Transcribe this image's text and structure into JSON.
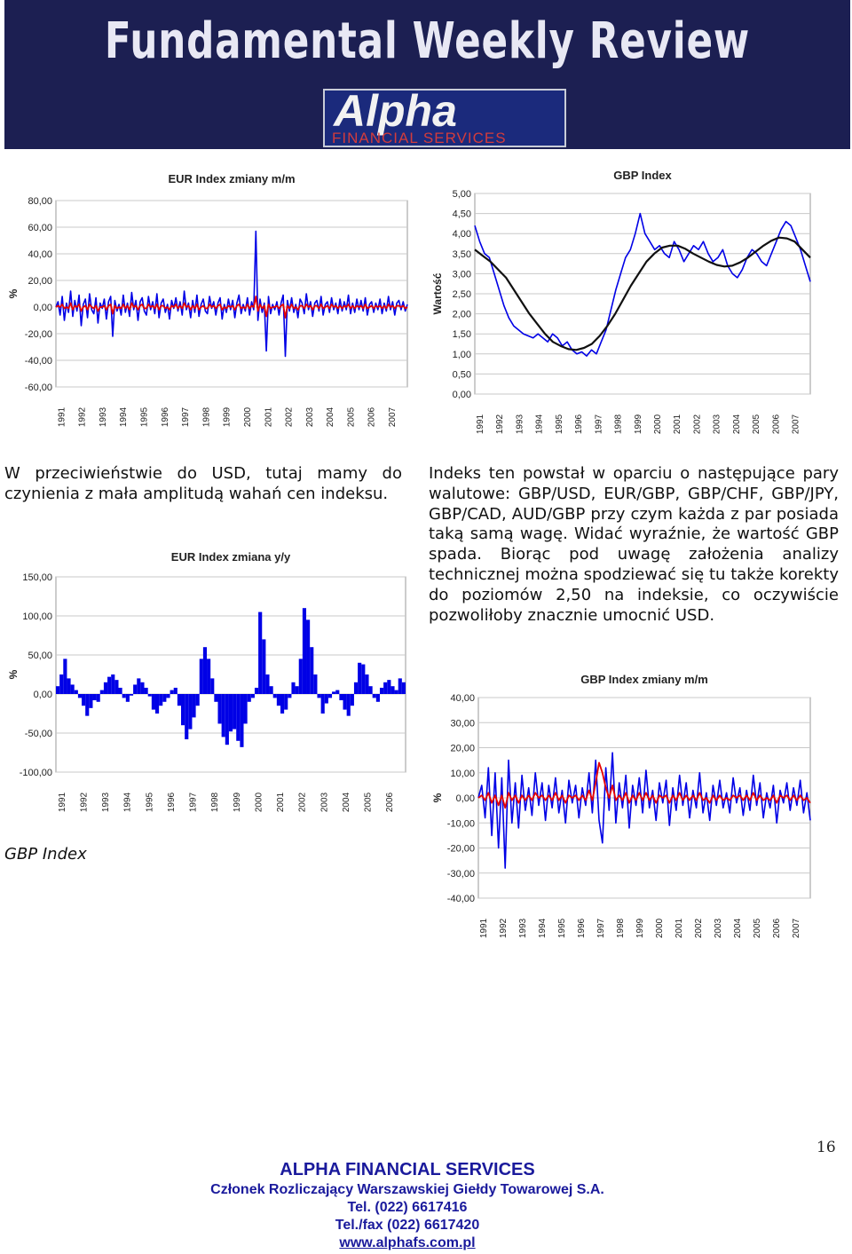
{
  "header": {
    "title": "Fundamental Weekly Review",
    "logo_word": "Alpha",
    "logo_subtitle": "FINANCIAL SERVICES"
  },
  "text": {
    "left_paragraph": "W przeciwieństwie do USD, tutaj mamy do czynienia z mała amplitudą wahań cen indeksu.",
    "right_paragraph": "Indeks ten powstał w oparciu o następujące pary walutowe: GBP/USD, EUR/GBP, GBP/CHF, GBP/JPY, GBP/CAD, AUD/GBP przy czym każda z par posiada taką samą wagę. Widać wyraźnie, że wartość GBP spada. Biorąc pod uwagę założenia analizy technicznej można spodziewać się tu także korekty do poziomów 2,50 na indeksie, co oczywiście pozwoliłoby znacznie umocnić USD.",
    "gbp_index_label": "GBP Index"
  },
  "footer": {
    "company": "ALPHA FINANCIAL SERVICES",
    "member": "Członek Rozliczający Warszawskiej Giełdy Towarowej S.A.",
    "tel": "Tel. (022) 6617416",
    "fax": "Tel./fax (022) 6617420",
    "website": "www.alphafs.com.pl",
    "page_number": "16"
  },
  "colors": {
    "banner": "#1c1f52",
    "series_blue": "#0000e6",
    "series_red": "#e60000",
    "trend_black": "#111111",
    "footer_text": "#1a1a9c"
  },
  "chart_data": [
    {
      "id": "eur_mm",
      "type": "line",
      "title": "EUR Index zmiany m/m",
      "ylabel": "%",
      "ylim": [
        -60,
        80
      ],
      "yticks": [
        "80,00",
        "60,00",
        "40,00",
        "20,00",
        "0,00",
        "-20,00",
        "-40,00",
        "-60,00"
      ],
      "ytick_values": [
        80,
        60,
        40,
        20,
        0,
        -20,
        -40,
        -60
      ],
      "xticks": [
        "1991",
        "1992",
        "1993",
        "1994",
        "1995",
        "1996",
        "1997",
        "1998",
        "1999",
        "2000",
        "2001",
        "2002",
        "2003",
        "2004",
        "2005",
        "2006",
        "2007"
      ],
      "series": [
        {
          "color": "#0000e6",
          "values": [
            0,
            4,
            -6,
            8,
            -10,
            3,
            -4,
            12,
            -7,
            5,
            -3,
            9,
            -14,
            2,
            6,
            -8,
            10,
            -2,
            -5,
            7,
            -12,
            3,
            -1,
            6,
            -9,
            4,
            8,
            -22,
            5,
            -3,
            2,
            -6,
            9,
            -4,
            3,
            -7,
            11,
            -2,
            5,
            -10,
            4,
            7,
            -3,
            -6,
            8,
            -2,
            4,
            -5,
            10,
            -8,
            3,
            6,
            -4,
            2,
            -9,
            5,
            -1,
            7,
            -3,
            4,
            -6,
            12,
            -2,
            3,
            -8,
            5,
            -4,
            9,
            -7,
            2,
            6,
            -3,
            -5,
            8,
            -1,
            4,
            -6,
            3,
            7,
            -9,
            2,
            -4,
            6,
            -2,
            5,
            -8,
            3,
            9,
            -5,
            2,
            -3,
            7,
            -6,
            4,
            -2,
            57,
            -10,
            6,
            -4,
            3,
            -33,
            8,
            -5,
            2,
            -2,
            4,
            -6,
            3,
            9,
            -37,
            5,
            -3,
            7,
            -4,
            2,
            -8,
            6,
            3,
            -5,
            10,
            -2,
            4,
            -7,
            3,
            5,
            -3,
            8,
            -6,
            2,
            4,
            -4,
            7,
            -2,
            3,
            -5,
            6,
            -3,
            4,
            -2,
            9,
            -5,
            3,
            -4,
            6,
            -2,
            5,
            -3,
            7,
            -6,
            2,
            4,
            -4,
            3,
            -2,
            6,
            -5,
            3,
            -3,
            8,
            -2,
            4,
            -6,
            3,
            5,
            -2,
            4,
            -3,
            2
          ]
        },
        {
          "color": "#e60000",
          "values": [
            0,
            1,
            0,
            2,
            -1,
            0,
            -1,
            3,
            -2,
            1,
            0,
            2,
            -3,
            0,
            1,
            -2,
            2,
            0,
            -1,
            1,
            -3,
            0,
            0,
            1,
            -2,
            1,
            2,
            -5,
            1,
            -1,
            0,
            -1,
            2,
            -1,
            1,
            -2,
            3,
            0,
            1,
            -2,
            1,
            2,
            -1,
            -1,
            2,
            0,
            1,
            -1,
            2,
            -2,
            1,
            1,
            -1,
            0,
            -2,
            1,
            0,
            2,
            -1,
            1,
            -1,
            3,
            0,
            1,
            -2,
            1,
            -1,
            2,
            -2,
            0,
            1,
            -1,
            -1,
            2,
            0,
            1,
            -1,
            1,
            2,
            -2,
            0,
            -1,
            1,
            0,
            1,
            -2,
            1,
            2,
            -1,
            0,
            -1,
            2,
            -1,
            1,
            0,
            8,
            -3,
            2,
            -1,
            1,
            -7,
            2,
            -1,
            0,
            0,
            1,
            -1,
            1,
            2,
            -8,
            1,
            -1,
            2,
            -1,
            0,
            -2,
            1,
            1,
            -1,
            2,
            0,
            1,
            -2,
            1,
            1,
            -1,
            2,
            -1,
            0,
            1,
            -1,
            2,
            0,
            1,
            -1,
            1,
            -1,
            1,
            0,
            2,
            -1,
            1,
            -1,
            1,
            0,
            1,
            -1,
            2,
            -1,
            0,
            1,
            -1,
            1,
            0,
            1,
            -1,
            1,
            -1,
            2,
            0,
            1,
            -1,
            1,
            1,
            0,
            1,
            -1,
            0
          ]
        }
      ]
    },
    {
      "id": "gbp_index",
      "type": "line",
      "title": "GBP Index",
      "ylabel": "Wartość",
      "ylim": [
        0,
        5
      ],
      "yticks": [
        "5,00",
        "4,50",
        "4,00",
        "3,50",
        "3,00",
        "2,50",
        "2,00",
        "1,50",
        "1,00",
        "0,50",
        "0,00"
      ],
      "ytick_values": [
        5,
        4.5,
        4,
        3.5,
        3,
        2.5,
        2,
        1.5,
        1,
        0.5,
        0
      ],
      "xticks": [
        "1991",
        "1992",
        "1993",
        "1994",
        "1995",
        "1996",
        "1997",
        "1998",
        "1999",
        "2000",
        "2001",
        "2002",
        "2003",
        "2004",
        "2005",
        "2006",
        "2007"
      ],
      "series": [
        {
          "color": "#0000e6",
          "values": [
            4.2,
            3.8,
            3.5,
            3.4,
            3.0,
            2.6,
            2.2,
            1.9,
            1.7,
            1.6,
            1.5,
            1.45,
            1.4,
            1.5,
            1.4,
            1.3,
            1.5,
            1.4,
            1.2,
            1.3,
            1.1,
            1.0,
            1.05,
            0.95,
            1.1,
            1.0,
            1.3,
            1.6,
            2.1,
            2.6,
            3.0,
            3.4,
            3.6,
            4.0,
            4.5,
            4.0,
            3.8,
            3.6,
            3.7,
            3.5,
            3.4,
            3.8,
            3.6,
            3.3,
            3.5,
            3.7,
            3.6,
            3.8,
            3.5,
            3.3,
            3.4,
            3.6,
            3.2,
            3.0,
            2.9,
            3.1,
            3.4,
            3.6,
            3.5,
            3.3,
            3.2,
            3.5,
            3.8,
            4.1,
            4.3,
            4.2,
            3.9,
            3.6,
            3.2,
            2.8
          ]
        },
        {
          "color": "#111111",
          "values": [
            3.6,
            3.45,
            3.3,
            3.1,
            2.9,
            2.6,
            2.3,
            2.0,
            1.75,
            1.5,
            1.3,
            1.2,
            1.12,
            1.1,
            1.15,
            1.25,
            1.45,
            1.7,
            2.0,
            2.35,
            2.7,
            3.0,
            3.3,
            3.5,
            3.65,
            3.7,
            3.7,
            3.62,
            3.5,
            3.4,
            3.3,
            3.22,
            3.18,
            3.2,
            3.28,
            3.4,
            3.55,
            3.7,
            3.82,
            3.9,
            3.88,
            3.8,
            3.6,
            3.4
          ]
        }
      ]
    },
    {
      "id": "eur_yy",
      "type": "bar",
      "title": "EUR Index zmiana y/y",
      "ylabel": "%",
      "ylim": [
        -100,
        150
      ],
      "yticks": [
        "150,00",
        "100,00",
        "50,00",
        "0,00",
        "-50,00",
        "-100,00"
      ],
      "ytick_values": [
        150,
        100,
        50,
        0,
        -50,
        -100
      ],
      "xticks": [
        "1991",
        "1992",
        "1993",
        "1994",
        "1995",
        "1996",
        "1997",
        "1998",
        "1999",
        "2000",
        "2001",
        "2002",
        "2003",
        "2004",
        "2005",
        "2006"
      ],
      "series": [
        {
          "color": "#0000e6",
          "values": [
            10,
            25,
            45,
            20,
            12,
            5,
            -5,
            -15,
            -28,
            -18,
            -8,
            -10,
            5,
            15,
            22,
            25,
            18,
            8,
            -5,
            -10,
            -2,
            12,
            20,
            15,
            8,
            -3,
            -20,
            -25,
            -15,
            -10,
            -5,
            5,
            8,
            -15,
            -40,
            -58,
            -45,
            -30,
            -15,
            45,
            60,
            45,
            20,
            -10,
            -38,
            -55,
            -65,
            -48,
            -45,
            -60,
            -68,
            -38,
            -10,
            -5,
            8,
            105,
            70,
            25,
            10,
            -5,
            -15,
            -25,
            -20,
            -5,
            15,
            10,
            45,
            110,
            95,
            60,
            25,
            -5,
            -25,
            -12,
            -5,
            3,
            5,
            -8,
            -20,
            -28,
            -15,
            15,
            40,
            38,
            25,
            10,
            -5,
            -10,
            8,
            15,
            18,
            10,
            5,
            20,
            15
          ]
        }
      ]
    },
    {
      "id": "gbp_mm",
      "type": "line",
      "title": "GBP Index zmiany m/m",
      "ylabel": "%",
      "ylim": [
        -40,
        40
      ],
      "yticks": [
        "40,00",
        "30,00",
        "20,00",
        "10,00",
        "0,00",
        "-10,00",
        "-20,00",
        "-30,00",
        "-40,00"
      ],
      "ytick_values": [
        40,
        30,
        20,
        10,
        0,
        -10,
        -20,
        -30,
        -40
      ],
      "xticks": [
        "1991",
        "1992",
        "1993",
        "1994",
        "1995",
        "1996",
        "1997",
        "1998",
        "1999",
        "2000",
        "2001",
        "2002",
        "2003",
        "2004",
        "2005",
        "2006",
        "2007"
      ],
      "series": [
        {
          "color": "#0000e6",
          "values": [
            0,
            5,
            -8,
            12,
            -15,
            10,
            -20,
            8,
            -28,
            15,
            -10,
            6,
            -12,
            9,
            -5,
            4,
            -7,
            10,
            -3,
            6,
            -9,
            5,
            -4,
            8,
            -6,
            3,
            -10,
            7,
            -2,
            5,
            -8,
            4,
            -3,
            10,
            -6,
            15,
            -9,
            -18,
            12,
            -5,
            18,
            -10,
            6,
            -4,
            9,
            -12,
            5,
            -3,
            8,
            -6,
            11,
            -4,
            3,
            -9,
            6,
            -2,
            7,
            -11,
            4,
            -5,
            9,
            -3,
            6,
            -8,
            3,
            -4,
            10,
            -6,
            2,
            -9,
            5,
            -3,
            7,
            -4,
            2,
            -6,
            8,
            -2,
            4,
            -7,
            3,
            -5,
            9,
            -3,
            6,
            -8,
            2,
            -4,
            5,
            -10,
            3,
            -2,
            6,
            -5,
            4,
            -3,
            7,
            -6,
            2,
            -9
          ]
        },
        {
          "color": "#e60000",
          "values": [
            0,
            1,
            -1,
            2,
            -2,
            1,
            -3,
            1,
            -4,
            2,
            -1,
            1,
            -2,
            1,
            -1,
            1,
            -1,
            2,
            0,
            1,
            -1,
            1,
            -1,
            2,
            -1,
            1,
            -2,
            1,
            0,
            1,
            -1,
            1,
            -1,
            3,
            -1,
            6,
            14,
            10,
            4,
            0,
            5,
            -1,
            1,
            -1,
            2,
            -2,
            1,
            -1,
            2,
            -1,
            2,
            -1,
            1,
            -2,
            1,
            0,
            1,
            -2,
            1,
            -1,
            2,
            -1,
            1,
            -1,
            1,
            -1,
            2,
            -1,
            0,
            -2,
            1,
            -1,
            1,
            -1,
            0,
            -1,
            1,
            0,
            1,
            -1,
            1,
            -1,
            2,
            -1,
            1,
            -1,
            0,
            -1,
            1,
            -2,
            1,
            0,
            1,
            -1,
            1,
            -1,
            1,
            -1,
            0,
            -2
          ]
        }
      ]
    }
  ]
}
